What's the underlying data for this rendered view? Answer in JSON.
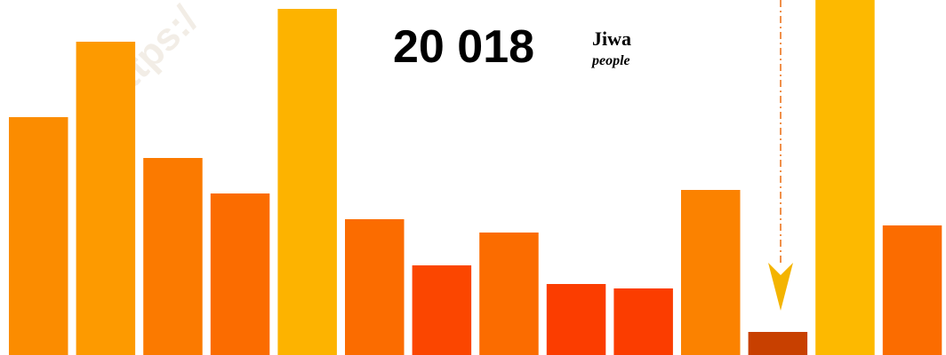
{
  "chart_data": {
    "type": "bar",
    "headline": "20 018",
    "unit": "Jiwa",
    "unit_translation": "people",
    "watermark": "https:/",
    "values": [
      268,
      353,
      222,
      182,
      390,
      153,
      101,
      138,
      80,
      75,
      186,
      26,
      400,
      146
    ],
    "colors": [
      "#fb8c00",
      "#fd9a00",
      "#fb7a00",
      "#fb6c00",
      "#fdb300",
      "#fb6c00",
      "#fb4600",
      "#fb6c00",
      "#fb3d00",
      "#fb3d00",
      "#fb8200",
      "#c84000",
      "#fdb900",
      "#fb6c00"
    ],
    "ylim": [
      0,
      400
    ]
  }
}
